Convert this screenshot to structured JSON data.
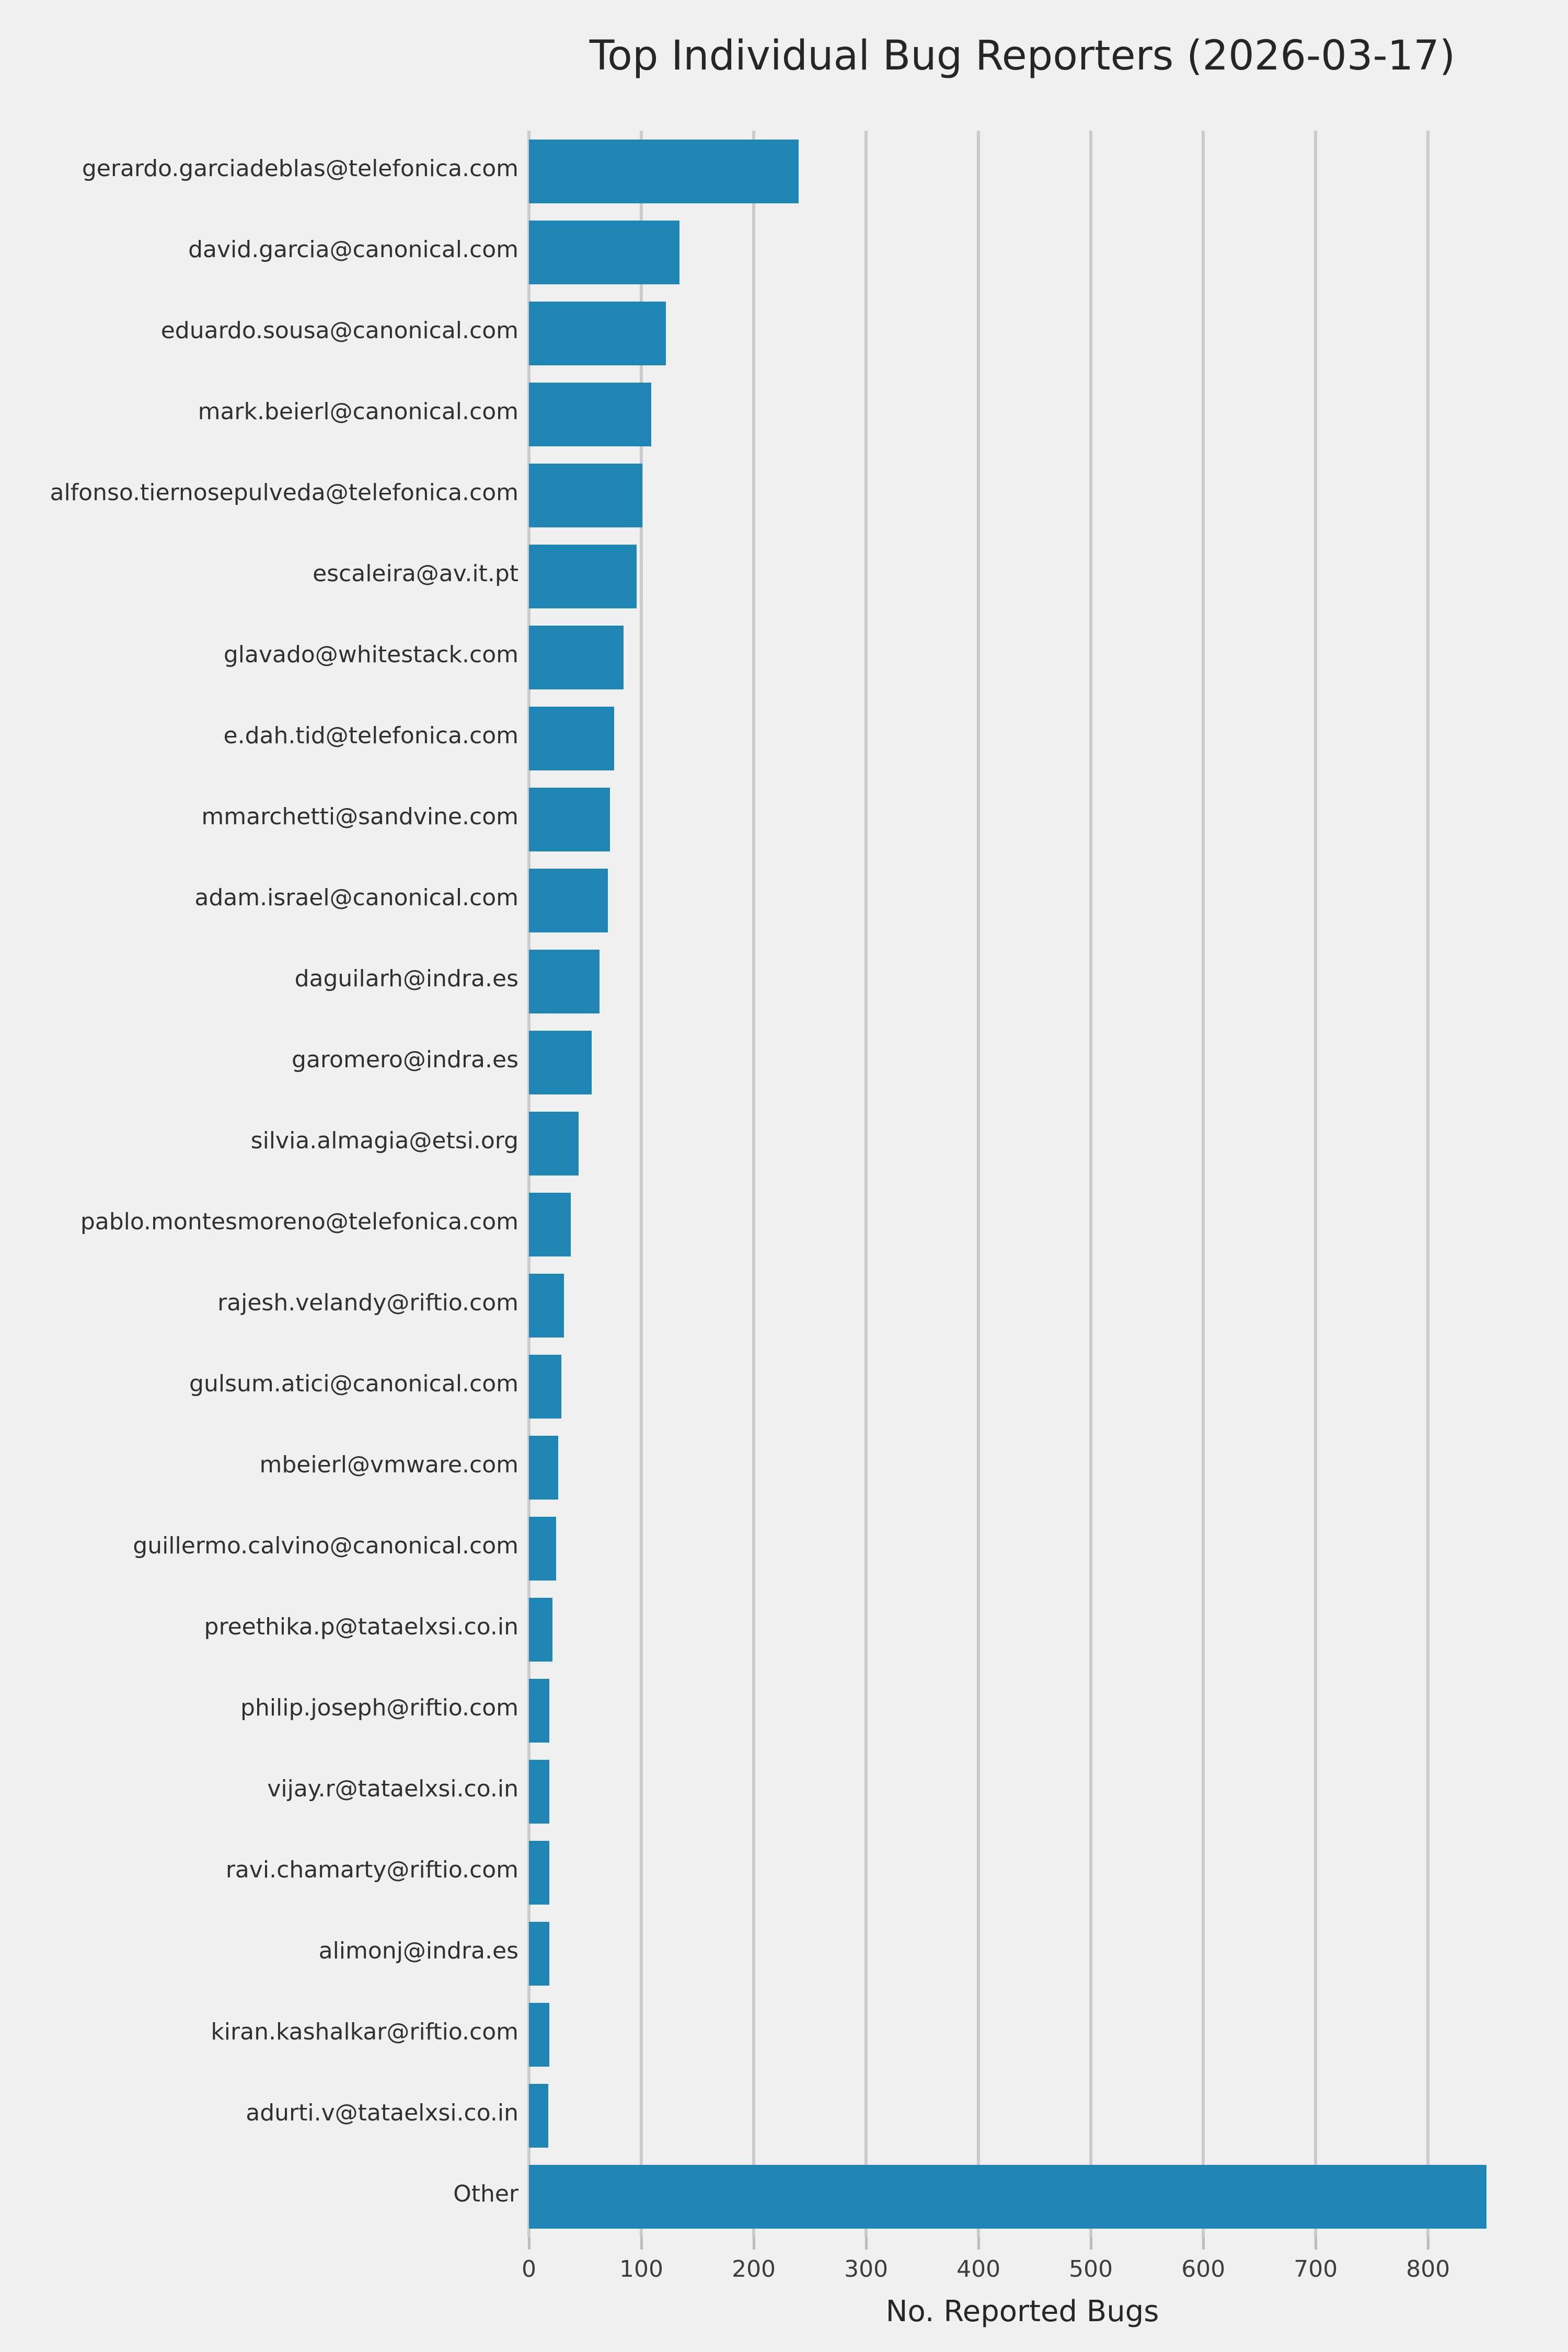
{
  "title": "Top Individual Bug Reporters (2026-03-17)",
  "colors": {
    "background": "#f0f0f0",
    "bar": "#1f85b4",
    "gridline": "#cbcbcb",
    "tick_mark": "#bdbdbd",
    "title_text": "#262626",
    "label_text": "#303030",
    "tick_text": "#3d3d3d"
  },
  "chart_data": {
    "type": "bar",
    "orientation": "horizontal",
    "title": "Top Individual Bug Reporters (2026-03-17)",
    "xlabel": "No. Reported Bugs",
    "ylabel": "",
    "legend": "none",
    "grid": "vertical gridlines only",
    "xlim": [
      0,
      878
    ],
    "x_ticks": [
      0,
      100,
      200,
      300,
      400,
      500,
      600,
      700,
      800
    ],
    "categories": [
      "gerardo.garciadeblas@telefonica.com",
      "david.garcia@canonical.com",
      "eduardo.sousa@canonical.com",
      "mark.beierl@canonical.com",
      "alfonso.tiernosepulveda@telefonica.com",
      "escaleira@av.it.pt",
      "glavado@whitestack.com",
      "e.dah.tid@telefonica.com",
      "mmarchetti@sandvine.com",
      "adam.israel@canonical.com",
      "daguilarh@indra.es",
      "garomero@indra.es",
      "silvia.almagia@etsi.org",
      "pablo.montesmoreno@telefonica.com",
      "rajesh.velandy@riftio.com",
      "gulsum.atici@canonical.com",
      "mbeierl@vmware.com",
      "guillermo.calvino@canonical.com",
      "preethika.p@tataelxsi.co.in",
      "philip.joseph@riftio.com",
      "vijay.r@tataelxsi.co.in",
      "ravi.chamarty@riftio.com",
      "alimonj@indra.es",
      "kiran.kashalkar@riftio.com",
      "adurti.v@tataelxsi.co.in",
      "Other"
    ],
    "values": [
      240,
      134,
      122,
      109,
      101,
      96,
      84,
      76,
      72,
      70,
      63,
      56,
      44,
      37,
      31,
      29,
      26,
      24,
      21,
      18,
      18,
      18,
      18,
      18,
      17,
      852
    ]
  }
}
